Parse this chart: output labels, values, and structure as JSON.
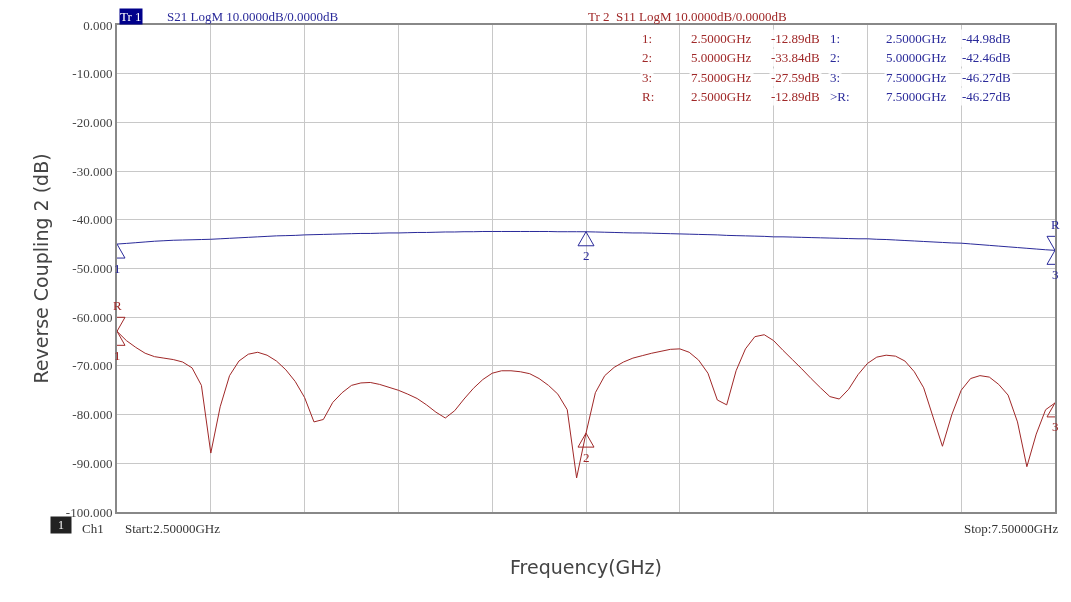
{
  "chart_data": {
    "type": "line",
    "xlabel": "Frequency(GHz)",
    "ylabel": "Reverse Coupling 2 (dB)",
    "categories": [
      null,
      null,
      null,
      null,
      null,
      null,
      null,
      null,
      null,
      null,
      null,
      null,
      null,
      null,
      null,
      null,
      null,
      null,
      null,
      null,
      null,
      null,
      null,
      null,
      null,
      null,
      null,
      null,
      null,
      null,
      null,
      null,
      null,
      null,
      null,
      null,
      null,
      null,
      null,
      null,
      null,
      null,
      null,
      null,
      null,
      null,
      null,
      null,
      null,
      null,
      null,
      null,
      null,
      null,
      null,
      null,
      null,
      null,
      null,
      null,
      null,
      null,
      null,
      null,
      null,
      null,
      null,
      null,
      null,
      null,
      null,
      null,
      null,
      null,
      null,
      null,
      null,
      null,
      null,
      null,
      null,
      null,
      null,
      null,
      null,
      null,
      null,
      null,
      null,
      null,
      null,
      null,
      null,
      null,
      null,
      null,
      null,
      null,
      null,
      null,
      null
    ],
    "ylim": [
      -100,
      0
    ],
    "yticks": [
      {
        "value": 0,
        "label": "0.000"
      },
      {
        "value": -10,
        "label": "-10.000"
      },
      {
        "value": -20,
        "label": "-20.000"
      },
      {
        "value": -30,
        "label": "-30.000"
      },
      {
        "value": -40,
        "label": "-40.000"
      },
      {
        "value": -50,
        "label": "-50.000"
      },
      {
        "value": -60,
        "label": "-60.000"
      },
      {
        "value": -70,
        "label": "-70.000"
      },
      {
        "value": -80,
        "label": "-80.000"
      },
      {
        "value": -90,
        "label": "-90.000"
      },
      {
        "value": -100,
        "label": "-100.000"
      }
    ],
    "tick_labels": "y",
    "grid": true,
    "marker": "none",
    "line_style": "solid",
    "series": [
      {
        "color": "#2a2a9a",
        "values": [
          -44.98,
          -44.85,
          -44.7,
          -44.55,
          -44.4,
          -44.3,
          -44.2,
          -44.15,
          -44.1,
          -44.05,
          -44.0,
          -43.9,
          -43.8,
          -43.7,
          -43.6,
          -43.5,
          -43.4,
          -43.3,
          -43.25,
          -43.2,
          -43.1,
          -43.05,
          -43.0,
          -42.95,
          -42.9,
          -42.85,
          -42.8,
          -42.8,
          -42.75,
          -42.7,
          -42.7,
          -42.65,
          -42.6,
          -42.6,
          -42.55,
          -42.5,
          -42.5,
          -42.45,
          -42.45,
          -42.4,
          -42.4,
          -42.4,
          -42.4,
          -42.4,
          -42.4,
          -42.4,
          -42.4,
          -42.45,
          -42.45,
          -42.45,
          -42.46,
          -42.5,
          -42.55,
          -42.6,
          -42.65,
          -42.7,
          -42.7,
          -42.75,
          -42.8,
          -42.85,
          -42.9,
          -42.95,
          -43.0,
          -43.05,
          -43.1,
          -43.2,
          -43.25,
          -43.3,
          -43.35,
          -43.4,
          -43.5,
          -43.5,
          -43.55,
          -43.6,
          -43.65,
          -43.7,
          -43.75,
          -43.8,
          -43.85,
          -43.9,
          -43.9,
          -44.0,
          -44.05,
          -44.15,
          -44.25,
          -44.35,
          -44.45,
          -44.55,
          -44.65,
          -44.75,
          -44.8,
          -44.95,
          -45.1,
          -45.25,
          -45.4,
          -45.55,
          -45.7,
          -45.85,
          -46.0,
          -46.15,
          -46.27
        ]
      },
      {
        "color": "#a02828",
        "values": [
          -62.9,
          -64.8,
          -66.2,
          -67.4,
          -68.1,
          -68.4,
          -68.7,
          -69.2,
          -70.4,
          -74.0,
          -87.9,
          -78.4,
          -72.0,
          -69.0,
          -67.6,
          -67.2,
          -67.8,
          -69.0,
          -70.8,
          -73.2,
          -76.5,
          -81.5,
          -81.0,
          -77.5,
          -75.5,
          -74.0,
          -73.5,
          -73.4,
          -73.8,
          -74.4,
          -75.0,
          -75.8,
          -76.7,
          -78.0,
          -79.5,
          -80.7,
          -79.2,
          -76.8,
          -74.6,
          -72.8,
          -71.5,
          -71.0,
          -71.0,
          -71.2,
          -71.6,
          -72.6,
          -74.0,
          -75.8,
          -79.0,
          -93.0,
          -83.8,
          -75.5,
          -72.0,
          -70.3,
          -69.2,
          -68.4,
          -67.9,
          -67.4,
          -67.0,
          -66.6,
          -66.5,
          -67.2,
          -68.8,
          -71.5,
          -77.0,
          -78.0,
          -71.0,
          -66.5,
          -64.0,
          -63.6,
          -64.8,
          -66.8,
          -68.7,
          -70.6,
          -72.6,
          -74.5,
          -76.3,
          -76.8,
          -74.8,
          -71.8,
          -69.5,
          -68.2,
          -67.8,
          -68.0,
          -69.0,
          -71.2,
          -74.5,
          -80.5,
          -86.5,
          -80.0,
          -75.0,
          -72.6,
          -72.0,
          -72.3,
          -73.8,
          -76.0,
          -81.5,
          -90.7,
          -84.0,
          -79.0,
          -77.6
        ]
      }
    ],
    "annotations": [
      "Tr 1",
      "S21 LogM 10.0000dB/0.0000dB",
      "Tr 2  S11 LogM 10.0000dB/0.0000dB",
      "1:",
      "2.5000GHz",
      "-12.89dB",
      "2:",
      "5.0000GHz",
      "-33.84dB",
      "3:",
      "7.5000GHz",
      "-27.59dB",
      "R:",
      "2.5000GHz",
      "-12.89dB",
      "1:",
      "2.5000GHz",
      "-44.98dB",
      "2:",
      "5.0000GHz",
      "-42.46dB",
      "3:",
      "7.5000GHz",
      "-46.27dB",
      ">R:",
      "7.5000GHz",
      "-46.27dB",
      "1",
      "Ch1",
      "Start:2.50000GHz",
      "Stop:7.50000GHz",
      "1",
      "2",
      "3",
      "R",
      "1",
      "R",
      "2",
      "3"
    ]
  }
}
